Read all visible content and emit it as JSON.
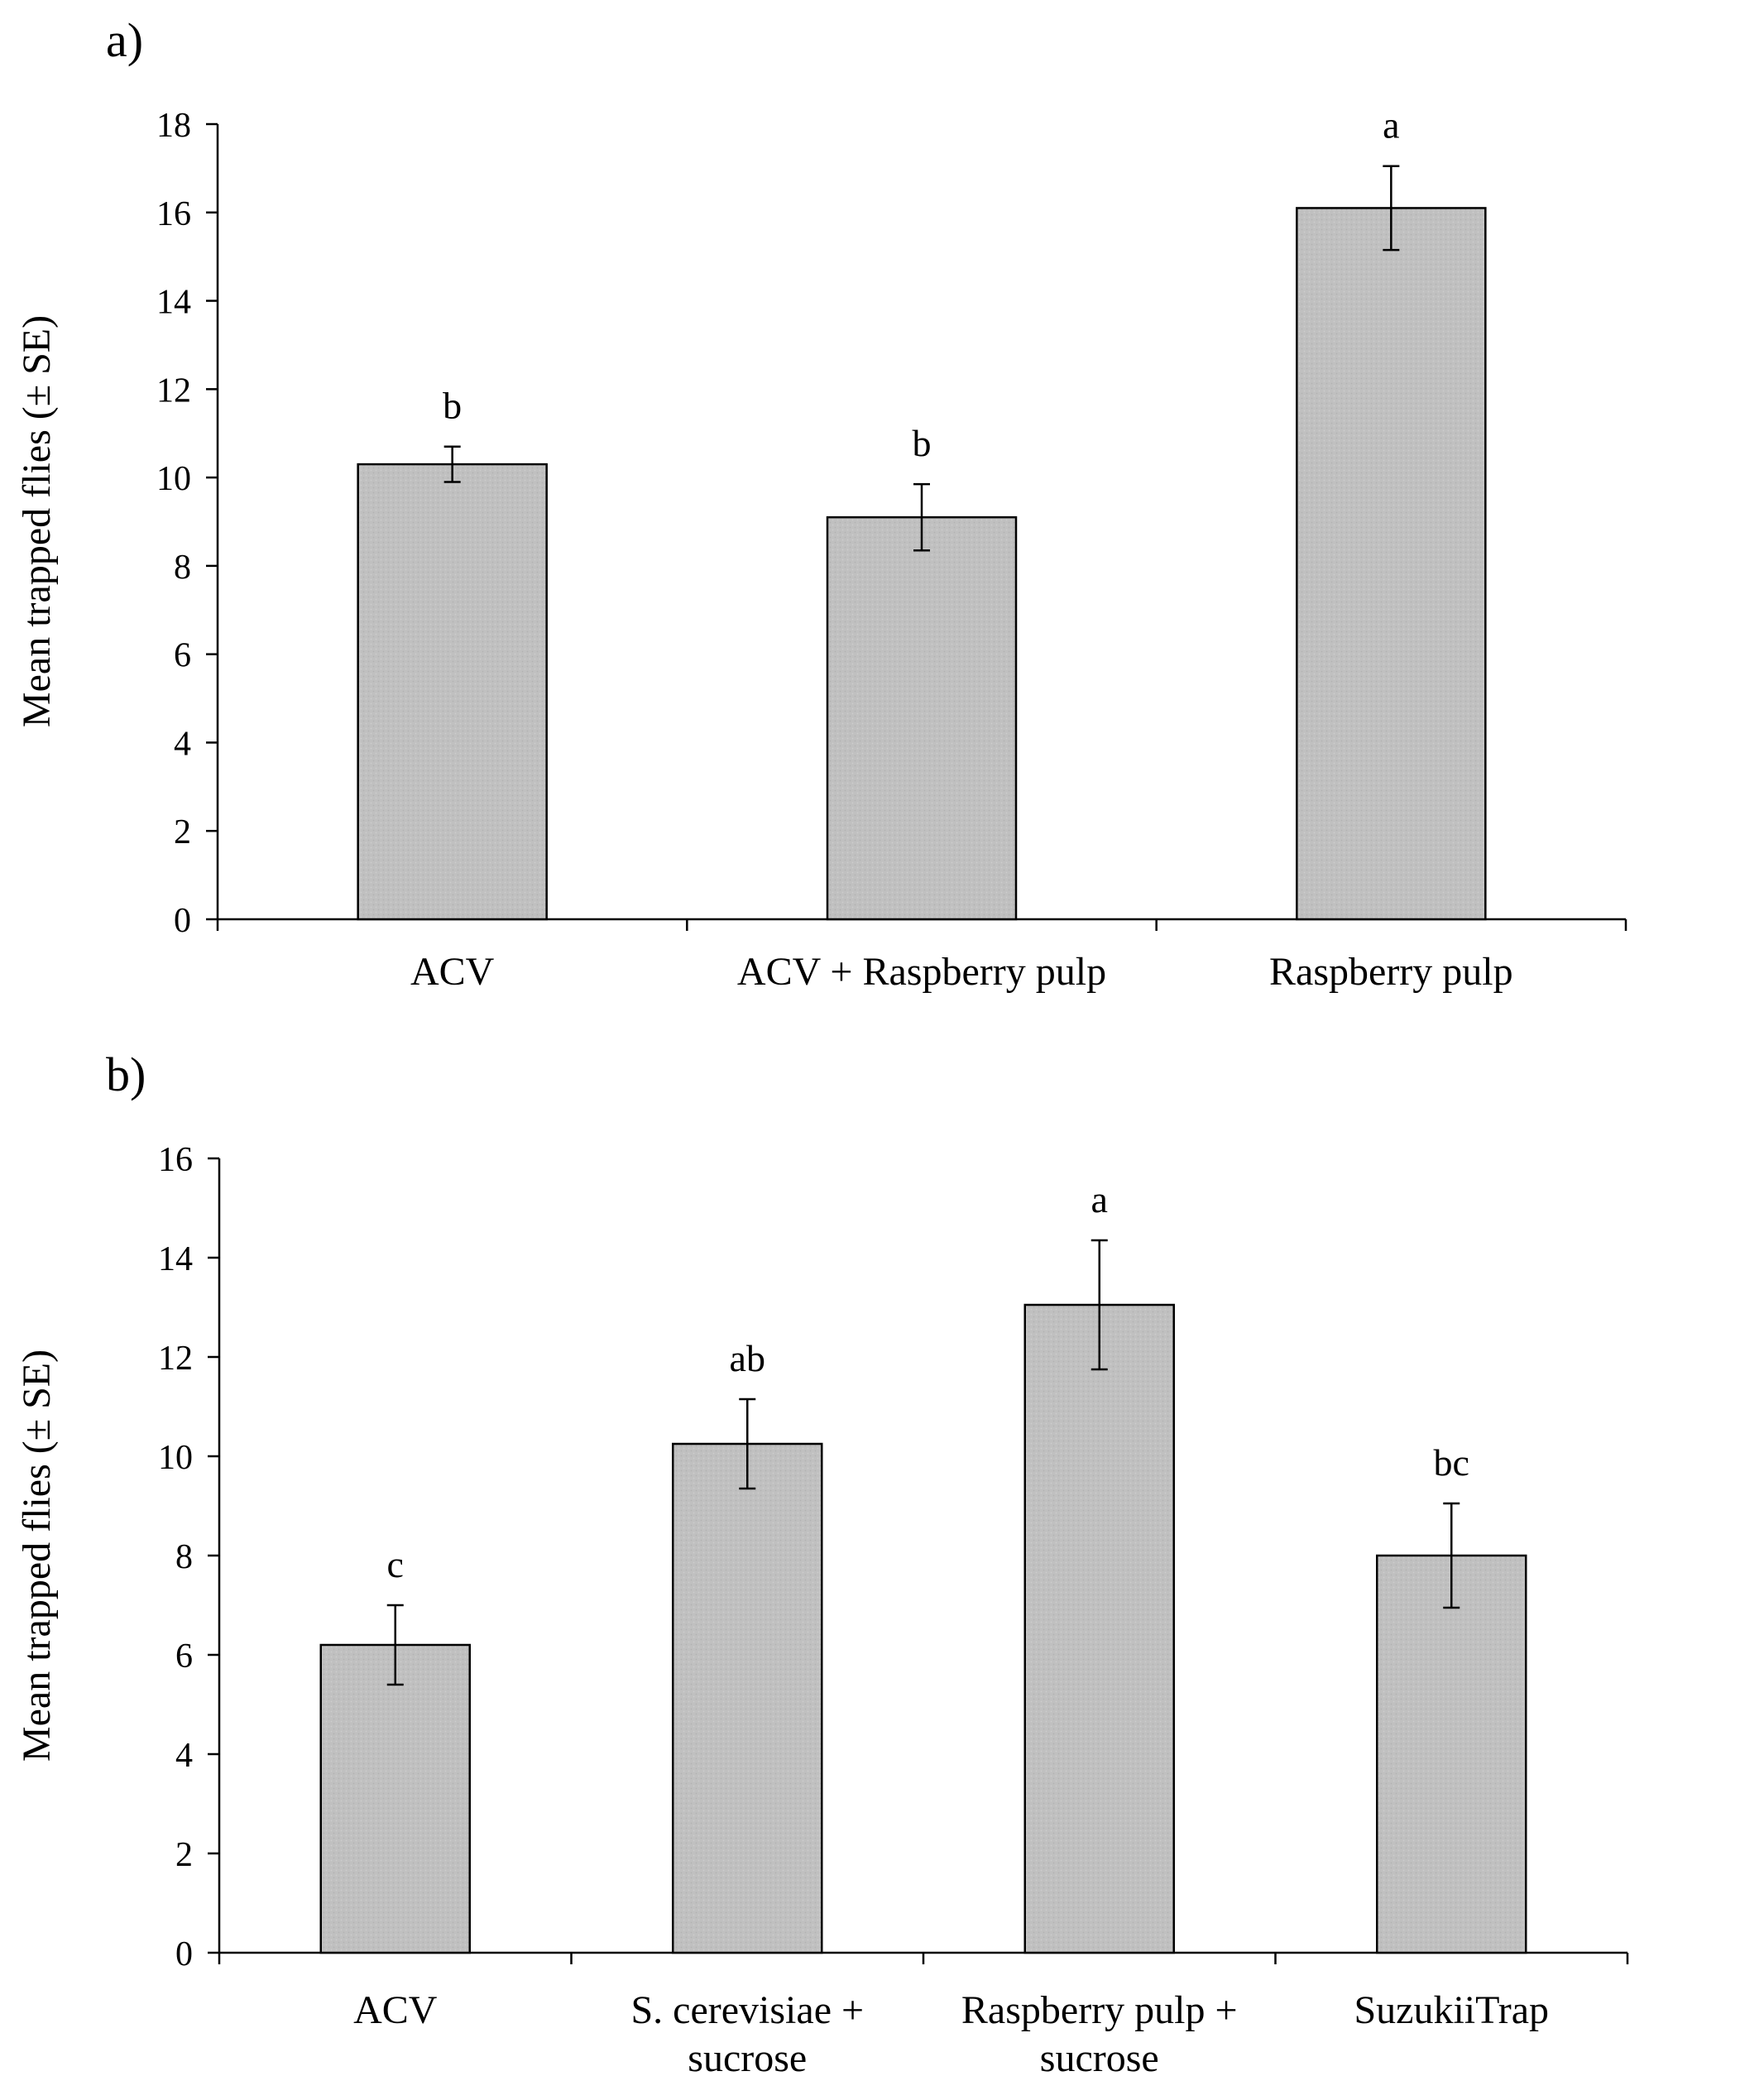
{
  "chart_data": [
    {
      "panel": "a)",
      "type": "bar",
      "ylabel": "Mean trapped  flies (± SE)",
      "xlabel": "",
      "ylim": [
        0,
        18
      ],
      "yticks": [
        0,
        2,
        4,
        6,
        8,
        10,
        12,
        14,
        16,
        18
      ],
      "categories": [
        [
          "ACV"
        ],
        [
          "ACV + Raspberry pulp"
        ],
        [
          "Raspberry pulp"
        ]
      ],
      "values": [
        10.3,
        9.1,
        16.1
      ],
      "errors": [
        0.4,
        0.75,
        0.95
      ],
      "significance": [
        "b",
        "b",
        "a"
      ],
      "bar_color": "#bfbfbf"
    },
    {
      "panel": "b)",
      "type": "bar",
      "ylabel": "Mean trapped  flies (± SE)",
      "xlabel": "",
      "ylim": [
        0,
        16
      ],
      "yticks": [
        0,
        2,
        4,
        6,
        8,
        10,
        12,
        14,
        16
      ],
      "categories": [
        [
          "ACV"
        ],
        [
          "S. cerevisiae +",
          "sucrose"
        ],
        [
          "Raspberry pulp +",
          "sucrose"
        ],
        [
          "SuzukiiTrap"
        ]
      ],
      "values": [
        6.2,
        10.25,
        13.05,
        8.0
      ],
      "errors": [
        0.8,
        0.9,
        1.3,
        1.05
      ],
      "significance": [
        "c",
        "ab",
        "a",
        "bc"
      ],
      "bar_color": "#bfbfbf"
    }
  ]
}
